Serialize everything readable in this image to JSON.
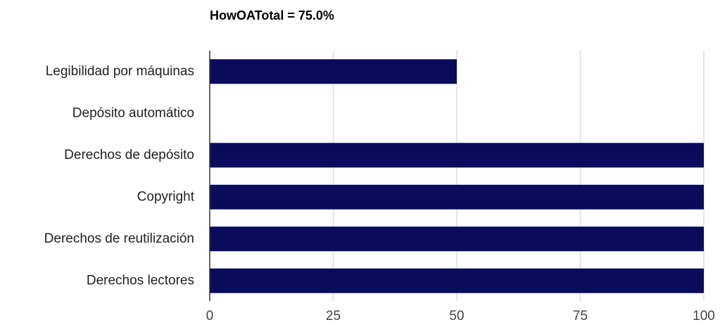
{
  "chart_data": {
    "type": "bar",
    "orientation": "horizontal",
    "title": "HowOATotal = 75.0%",
    "categories": [
      "Legibilidad por máquinas",
      "Depósito automático",
      "Derechos de depósito",
      "Copyright",
      "Derechos de reutilización",
      "Derechos lectores"
    ],
    "values": [
      50,
      0,
      100,
      100,
      100,
      100
    ],
    "xlim": [
      0,
      100
    ],
    "xticks": [
      0,
      25,
      50,
      75,
      100
    ],
    "xlabel": "",
    "ylabel": "",
    "grid": true,
    "legend": "none",
    "colors": {
      "bar": "#0b0b5b",
      "grid": "#dedede",
      "axis": "#333333"
    }
  }
}
